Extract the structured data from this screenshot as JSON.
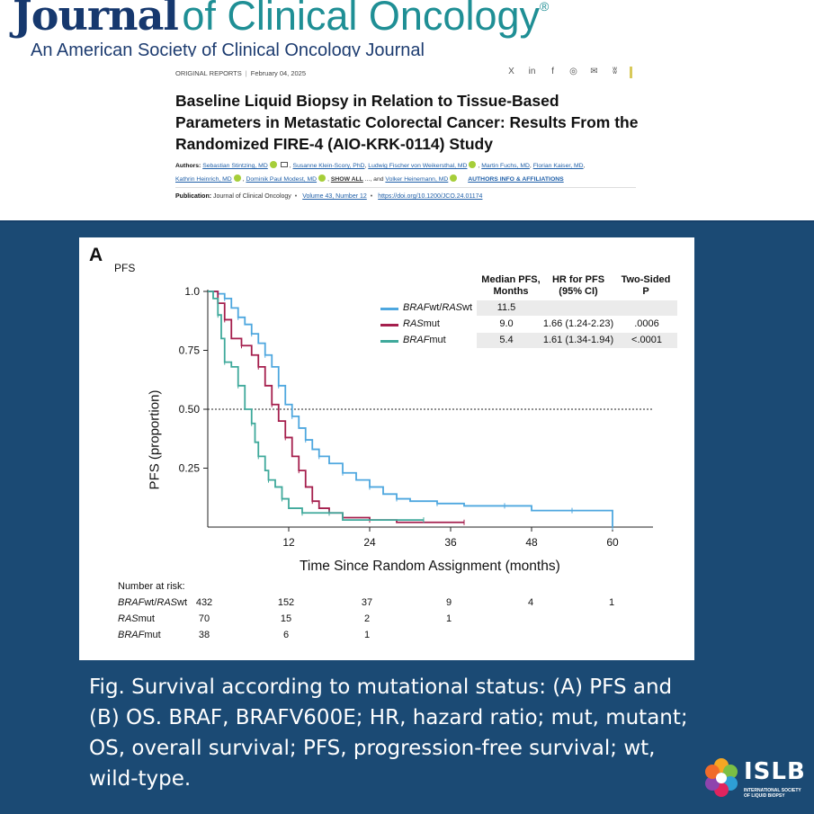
{
  "header": {
    "journal_bold": "Journal",
    "journal_light": "of Clinical Oncology",
    "registered": "®",
    "subtitle": "An American Society of Clinical Oncology Journal",
    "article_type": "ORIGINAL REPORTS",
    "date": "February 04, 2025",
    "share_icons": [
      "x-icon",
      "linkedin-icon",
      "facebook-icon",
      "wechat-icon",
      "email-icon",
      "bluesky-icon"
    ],
    "share_glyphs": [
      "X",
      "in",
      "f",
      "◎",
      "✉",
      "ʬ"
    ],
    "article_title": "Baseline Liquid Biopsy in Relation to Tissue-Based Parameters in Metastatic Colorectal Cancer: Results From the Randomized FIRE-4 (AIO-KRK-0114) Study",
    "authors_label": "Authors:",
    "authors": [
      "Sebastian Stintzing, MD",
      "Susanne Klein-Scory, PhD",
      "Ludwig Fischer von Weikersthal, MD",
      "Martin Fuchs, MD",
      "Florian Kaiser, MD",
      "Kathrin Heinrich, MD",
      "Dominik Paul Modest, MD"
    ],
    "show_all": "SHOW ALL",
    "ellipsis": "..., and",
    "last_author": "Volker Heinemann, MD",
    "authors_info": "AUTHORS INFO & AFFILIATIONS",
    "publication_label": "Publication:",
    "publication": "Journal of Clinical Oncology",
    "volume": "Volume 43, Number 12",
    "doi": "https://doi.org/10.1200/JCO.24.01174"
  },
  "figure": {
    "panel_letter": "A",
    "panel_title": "PFS",
    "legend_headers": {
      "median": "Median PFS,\nMonths",
      "hr": "HR for PFS\n(95% CI)",
      "p": "Two-Sided\nP"
    },
    "legend_rows": [
      {
        "name_italic": "BRAF",
        "name_plain": "wt/",
        "name_italic2": "RAS",
        "name_plain2": "wt",
        "median": "11.5",
        "hr": "",
        "p": ""
      },
      {
        "name_italic": "RAS",
        "name_plain": "mut",
        "name_italic2": "",
        "name_plain2": "",
        "median": "9.0",
        "hr": "1.66 (1.24-2.23)",
        "p": ".0006"
      },
      {
        "name_italic": "BRAF",
        "name_plain": "mut",
        "name_italic2": "",
        "name_plain2": "",
        "median": "5.4",
        "hr": "1.61 (1.34-1.94)",
        "p": "<.0001"
      }
    ],
    "risk_title": "Number at risk:",
    "risk_rows": [
      {
        "name_italic": "BRAF",
        "name_plain": "wt/",
        "name_italic2": "RAS",
        "name_plain2": "wt",
        "values": [
          "432",
          "152",
          "37",
          "9",
          "4",
          "1"
        ]
      },
      {
        "name_italic": "RAS",
        "name_plain": "mut",
        "name_italic2": "",
        "name_plain2": "",
        "values": [
          "70",
          "15",
          "2",
          "1",
          "",
          ""
        ]
      },
      {
        "name_italic": "BRAF",
        "name_plain": "mut",
        "name_italic2": "",
        "name_plain2": "",
        "values": [
          "38",
          "6",
          "1",
          "",
          "",
          ""
        ]
      }
    ]
  },
  "chart_data": {
    "type": "line",
    "title": "PFS",
    "xlabel": "Time Since Random Assignment (months)",
    "ylabel": "PFS (proportion)",
    "xlim": [
      0,
      66
    ],
    "ylim": [
      0,
      1.0
    ],
    "x_ticks": [
      12,
      24,
      36,
      48,
      60
    ],
    "y_ticks": [
      0.25,
      0.5,
      0.75,
      1.0
    ],
    "y_tick_labels": [
      "0.25",
      "0.50",
      "0.75",
      "1.0"
    ],
    "reference_line": 0.5,
    "grid": false,
    "legend_placement": "top-right",
    "series": [
      {
        "name": "BRAFwt/RASwt",
        "color": "#4ea7df",
        "points": [
          [
            0,
            1.0
          ],
          [
            1.5,
            0.99
          ],
          [
            2.5,
            0.97
          ],
          [
            3.5,
            0.93
          ],
          [
            4.5,
            0.89
          ],
          [
            5.5,
            0.86
          ],
          [
            6.5,
            0.82
          ],
          [
            7.5,
            0.78
          ],
          [
            8.5,
            0.73
          ],
          [
            9.5,
            0.68
          ],
          [
            10.5,
            0.6
          ],
          [
            11.5,
            0.52
          ],
          [
            12.5,
            0.47
          ],
          [
            13.5,
            0.42
          ],
          [
            14.5,
            0.37
          ],
          [
            15.5,
            0.33
          ],
          [
            16.5,
            0.3
          ],
          [
            18,
            0.27
          ],
          [
            20,
            0.23
          ],
          [
            22,
            0.2
          ],
          [
            24,
            0.17
          ],
          [
            26,
            0.14
          ],
          [
            28,
            0.12
          ],
          [
            30,
            0.11
          ],
          [
            34,
            0.1
          ],
          [
            38,
            0.09
          ],
          [
            44,
            0.09
          ],
          [
            48,
            0.07
          ],
          [
            54,
            0.07
          ],
          [
            60,
            0.07
          ],
          [
            60,
            0.0
          ]
        ]
      },
      {
        "name": "RASmut",
        "color": "#a51f4d",
        "points": [
          [
            0,
            1.0
          ],
          [
            1.5,
            0.95
          ],
          [
            2.5,
            0.88
          ],
          [
            3.5,
            0.8
          ],
          [
            5,
            0.77
          ],
          [
            6.5,
            0.73
          ],
          [
            7.5,
            0.68
          ],
          [
            8.5,
            0.6
          ],
          [
            9.5,
            0.52
          ],
          [
            10.5,
            0.45
          ],
          [
            11.5,
            0.38
          ],
          [
            12.5,
            0.3
          ],
          [
            13.5,
            0.24
          ],
          [
            14.5,
            0.17
          ],
          [
            15.5,
            0.11
          ],
          [
            16.5,
            0.08
          ],
          [
            18,
            0.06
          ],
          [
            20,
            0.04
          ],
          [
            24,
            0.03
          ],
          [
            28,
            0.02
          ],
          [
            38,
            0.02
          ]
        ]
      },
      {
        "name": "BRAFmut",
        "color": "#3fa99b",
        "points": [
          [
            0,
            1.0
          ],
          [
            0.8,
            0.97
          ],
          [
            1.5,
            0.9
          ],
          [
            2,
            0.8
          ],
          [
            2.5,
            0.7
          ],
          [
            3.5,
            0.68
          ],
          [
            4.5,
            0.6
          ],
          [
            5.5,
            0.5
          ],
          [
            6.5,
            0.44
          ],
          [
            7,
            0.36
          ],
          [
            7.5,
            0.3
          ],
          [
            8.5,
            0.24
          ],
          [
            9,
            0.2
          ],
          [
            10,
            0.17
          ],
          [
            11,
            0.12
          ],
          [
            12,
            0.08
          ],
          [
            14,
            0.06
          ],
          [
            16,
            0.06
          ],
          [
            18,
            0.06
          ],
          [
            20,
            0.03
          ],
          [
            32,
            0.03
          ]
        ]
      }
    ]
  },
  "caption": "Fig. Survival according to mutational status: (A) PFS and (B) OS. BRAF, BRAFV600E; HR, hazard ratio; mut, mutant; OS, overall survival; PFS, progression-free survival; wt, wild-type.",
  "logo": {
    "text": "ISLB",
    "subtext": "INTERNATIONAL SOCIETY OF LIQUID BIOPSY"
  }
}
